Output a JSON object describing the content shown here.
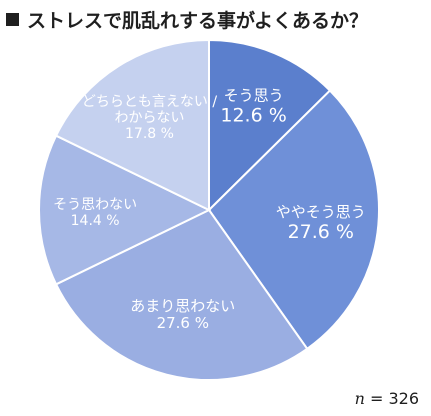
{
  "title": "ストレスで肌乱れする事がよくあるか？",
  "sample": {
    "n_symbol": "n",
    "separator": " = ",
    "value": "326"
  },
  "chart_data": {
    "type": "pie",
    "title": "ストレスで肌乱れする事がよくあるか？",
    "start_angle_deg": 0,
    "direction": "clockwise",
    "unit": "%",
    "slices": [
      {
        "label": "そう思う",
        "value": 12.6,
        "value_text": "12.6 %",
        "color": "#5b7fcd",
        "text_color": "#ffffff"
      },
      {
        "label": "ややそう思う",
        "value": 27.6,
        "value_text": "27.6 %",
        "color": "#6f90d8",
        "text_color": "#ffffff"
      },
      {
        "label": "あまり思わない",
        "value": 27.6,
        "value_text": "27.6 %",
        "color": "#9aaee2",
        "text_color": "#ffffff"
      },
      {
        "label": "そう思わない",
        "value": 14.4,
        "value_text": "14.4 %",
        "color": "#a6b8e6",
        "text_color": "#ffffff"
      },
      {
        "label": "どちらとも言えない / わからない",
        "value": 17.8,
        "value_text": "17.8 %",
        "color": "#c5d1ef",
        "text_color": "#ffffff"
      }
    ]
  }
}
